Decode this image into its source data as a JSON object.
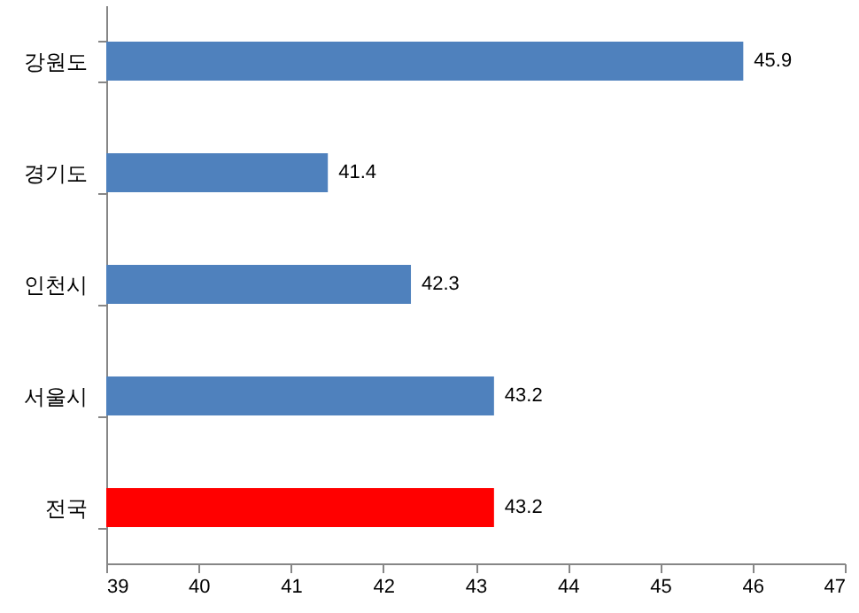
{
  "chart_data": {
    "type": "bar",
    "orientation": "horizontal",
    "categories": [
      "강원도",
      "경기도",
      "인천시",
      "서울시",
      "전국"
    ],
    "values": [
      45.9,
      41.4,
      42.3,
      43.2,
      43.2
    ],
    "colors": [
      "#4f81bd",
      "#4f81bd",
      "#4f81bd",
      "#4f81bd",
      "#ff0000"
    ],
    "xlim": [
      39,
      47
    ],
    "xticks": [
      39,
      40,
      41,
      42,
      43,
      44,
      45,
      46,
      47
    ],
    "data_labels": true
  }
}
